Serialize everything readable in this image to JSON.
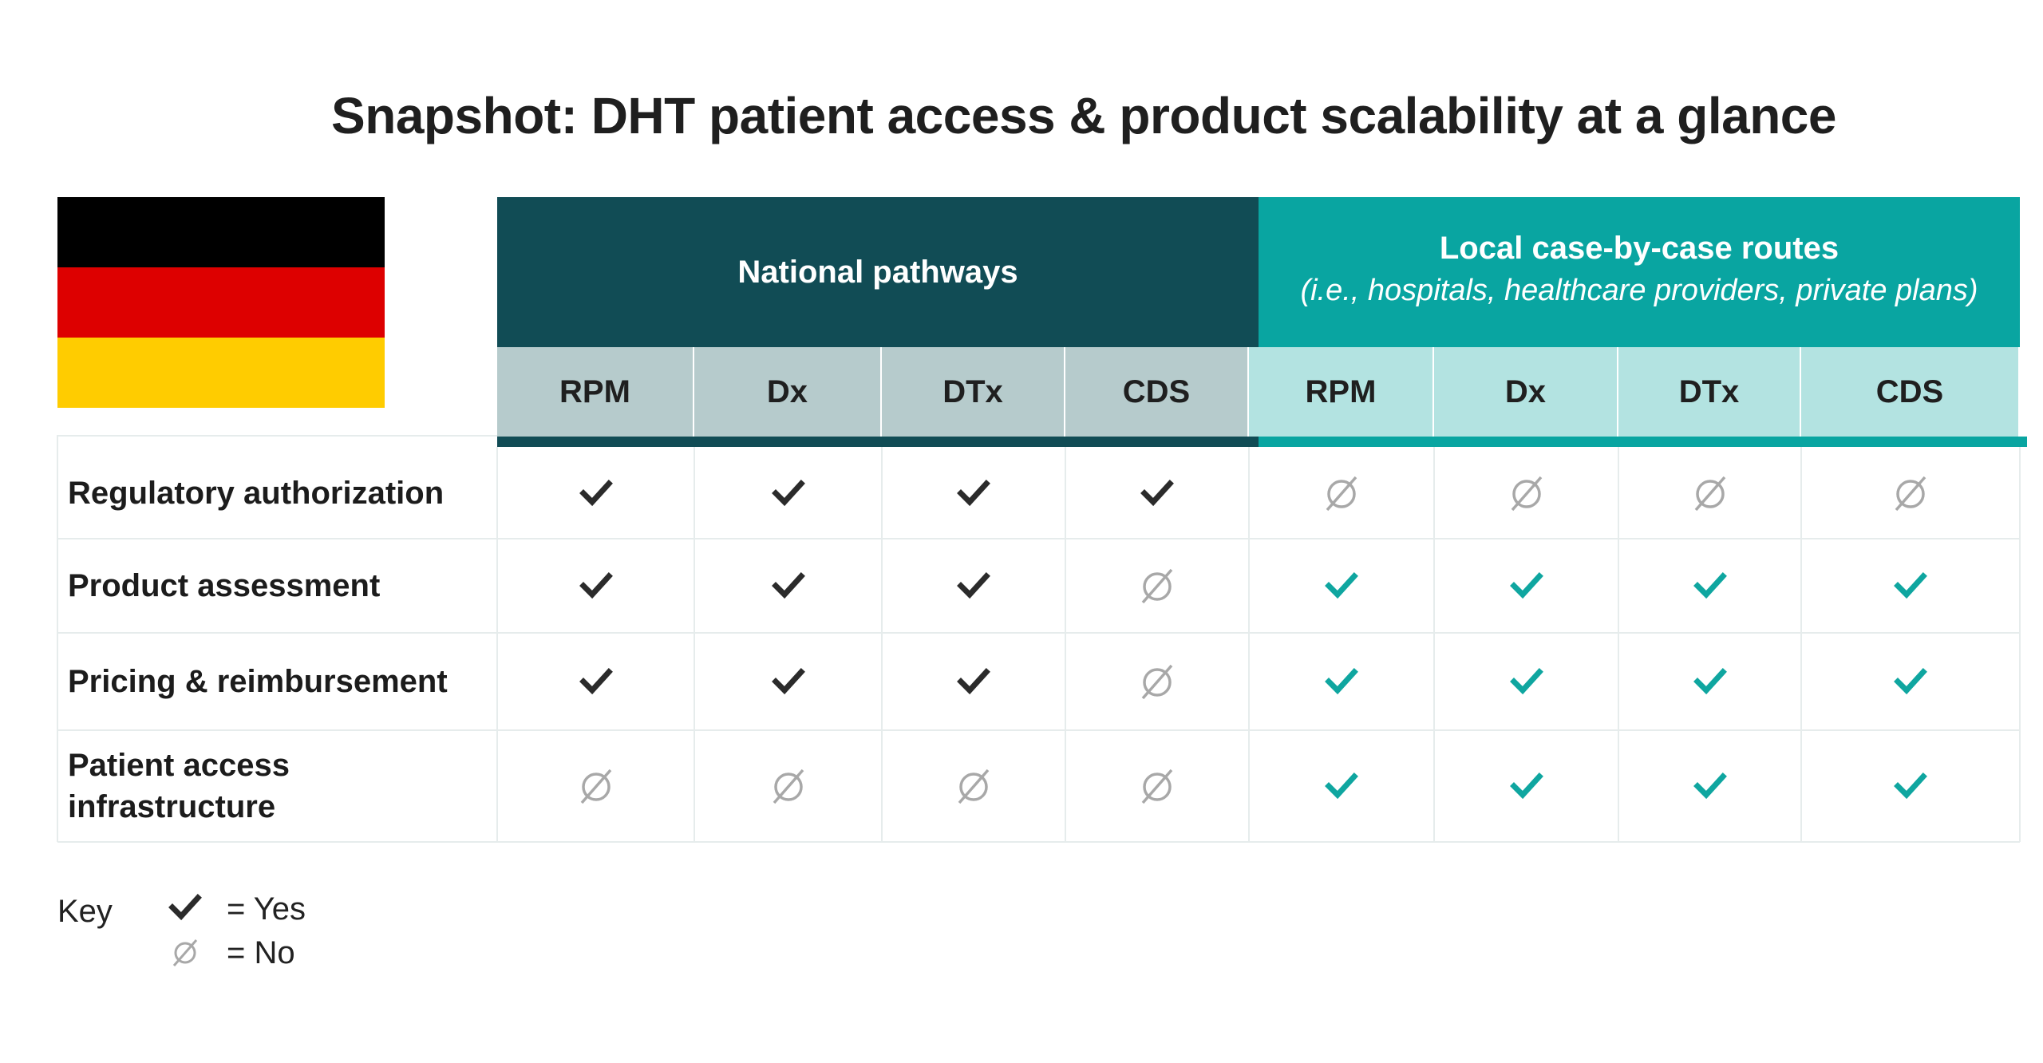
{
  "title": "Snapshot: DHT patient access & product scalability at a glance",
  "flag": {
    "stripes": [
      "#000000",
      "#dd0000",
      "#ffcc00"
    ]
  },
  "groups": {
    "national": {
      "title": "National pathways",
      "color": "#114c55"
    },
    "local": {
      "title": "Local case-by-case routes",
      "subtitle": "(i.e., hospitals, healthcare providers, private plans)",
      "color": "#09a5a1"
    }
  },
  "columns": [
    "RPM",
    "Dx",
    "DTx",
    "CDS",
    "RPM",
    "Dx",
    "DTx",
    "CDS"
  ],
  "rows": [
    {
      "label": "Regulatory authorization",
      "values": [
        "yes",
        "yes",
        "yes",
        "yes",
        "no",
        "no",
        "no",
        "no"
      ]
    },
    {
      "label": "Product assessment",
      "values": [
        "yes",
        "yes",
        "yes",
        "no",
        "yes",
        "yes",
        "yes",
        "yes"
      ]
    },
    {
      "label": "Pricing & reimbursement",
      "values": [
        "yes",
        "yes",
        "yes",
        "no",
        "yes",
        "yes",
        "yes",
        "yes"
      ]
    },
    {
      "label": "Patient access infrastructure",
      "values": [
        "no",
        "no",
        "no",
        "no",
        "yes",
        "yes",
        "yes",
        "yes"
      ]
    }
  ],
  "key": {
    "label": "Key",
    "yes_label": "= Yes",
    "no_label": "= No"
  },
  "colors": {
    "check_dark": "#2b2b2b",
    "check_teal": "#0fa6a0",
    "no_symbol": "#a8a8a8"
  },
  "icons": {
    "yes": "check-icon",
    "no": "empty-set-icon"
  }
}
